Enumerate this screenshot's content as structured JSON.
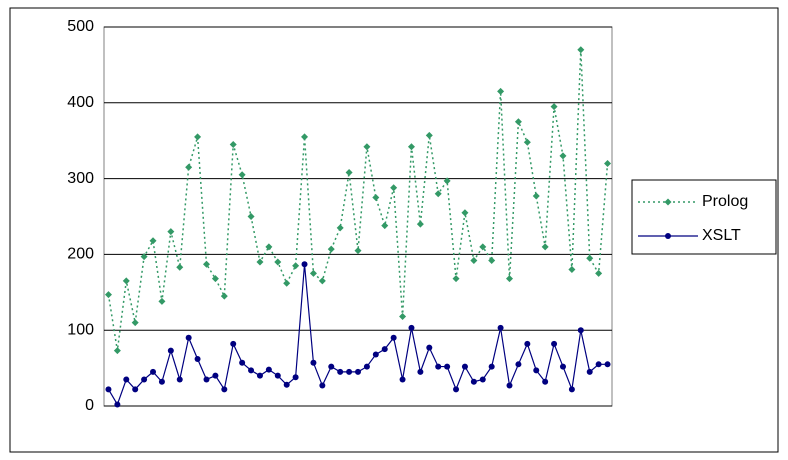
{
  "chart_data": {
    "type": "line",
    "categories": [
      null,
      null,
      null,
      null,
      null,
      null,
      null,
      null,
      null,
      null,
      null,
      null,
      null,
      null,
      null,
      null,
      null,
      null,
      null,
      null,
      null,
      null,
      null,
      null,
      null,
      null,
      null,
      null,
      null,
      null,
      null,
      null,
      null,
      null,
      null,
      null,
      null,
      null,
      null,
      null,
      null,
      null,
      null,
      null,
      null,
      null,
      null,
      null,
      null,
      null,
      null,
      null,
      null,
      null,
      null,
      null,
      null
    ],
    "series": [
      {
        "name": "Prolog",
        "color": "#339966",
        "values": [
          147,
          73,
          165,
          110,
          197,
          218,
          138,
          230,
          183,
          315,
          355,
          187,
          168,
          145,
          345,
          305,
          250,
          190,
          210,
          190,
          162,
          185,
          355,
          175,
          165,
          207,
          235,
          308,
          205,
          342,
          275,
          238,
          288,
          118,
          342,
          240,
          357,
          280,
          297,
          168,
          255,
          192,
          210,
          192,
          415,
          168,
          375,
          348,
          277,
          210,
          395,
          330,
          180,
          470,
          195,
          175,
          320
        ]
      },
      {
        "name": "XSLT",
        "color": "#000080",
        "values": [
          22,
          2,
          35,
          22,
          35,
          45,
          32,
          73,
          35,
          90,
          62,
          35,
          40,
          22,
          82,
          57,
          47,
          40,
          48,
          40,
          28,
          38,
          187,
          57,
          27,
          52,
          45,
          45,
          45,
          52,
          68,
          75,
          90,
          35,
          103,
          45,
          77,
          52,
          52,
          22,
          52,
          32,
          35,
          52,
          103,
          27,
          55,
          82,
          47,
          32,
          82,
          52,
          22,
          100,
          45,
          55,
          55
        ]
      }
    ],
    "ylim": [
      0,
      500
    ],
    "yticks": [
      0,
      100,
      200,
      300,
      400,
      500
    ],
    "grid": true,
    "legend": "right"
  }
}
